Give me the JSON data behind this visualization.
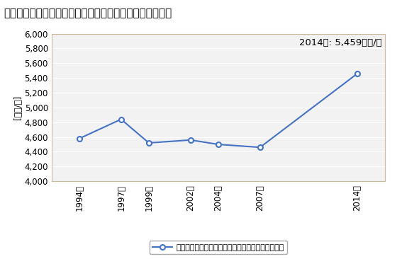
{
  "title": "その他の卸売業の従業者一人当たり年間商品販売額の推移",
  "ylabel": "[万円/人]",
  "annotation": "2014年: 5,459万円/人",
  "years": [
    1994,
    1997,
    1999,
    2002,
    2004,
    2007,
    2014
  ],
  "values": [
    4580,
    4840,
    4520,
    4560,
    4500,
    4460,
    5459
  ],
  "ylim": [
    4000,
    6000
  ],
  "yticks": [
    4000,
    4200,
    4400,
    4600,
    4800,
    5000,
    5200,
    5400,
    5600,
    5800,
    6000
  ],
  "line_color": "#4472C4",
  "marker_color": "#4472C4",
  "legend_label": "その他の卸売業の従業者一人当たり年間商品販売額",
  "bg_color": "#FFFFFF",
  "plot_bg_color": "#F2F2F2",
  "title_fontsize": 11,
  "axis_fontsize": 8.5,
  "annotation_fontsize": 9.5,
  "legend_fontsize": 8
}
